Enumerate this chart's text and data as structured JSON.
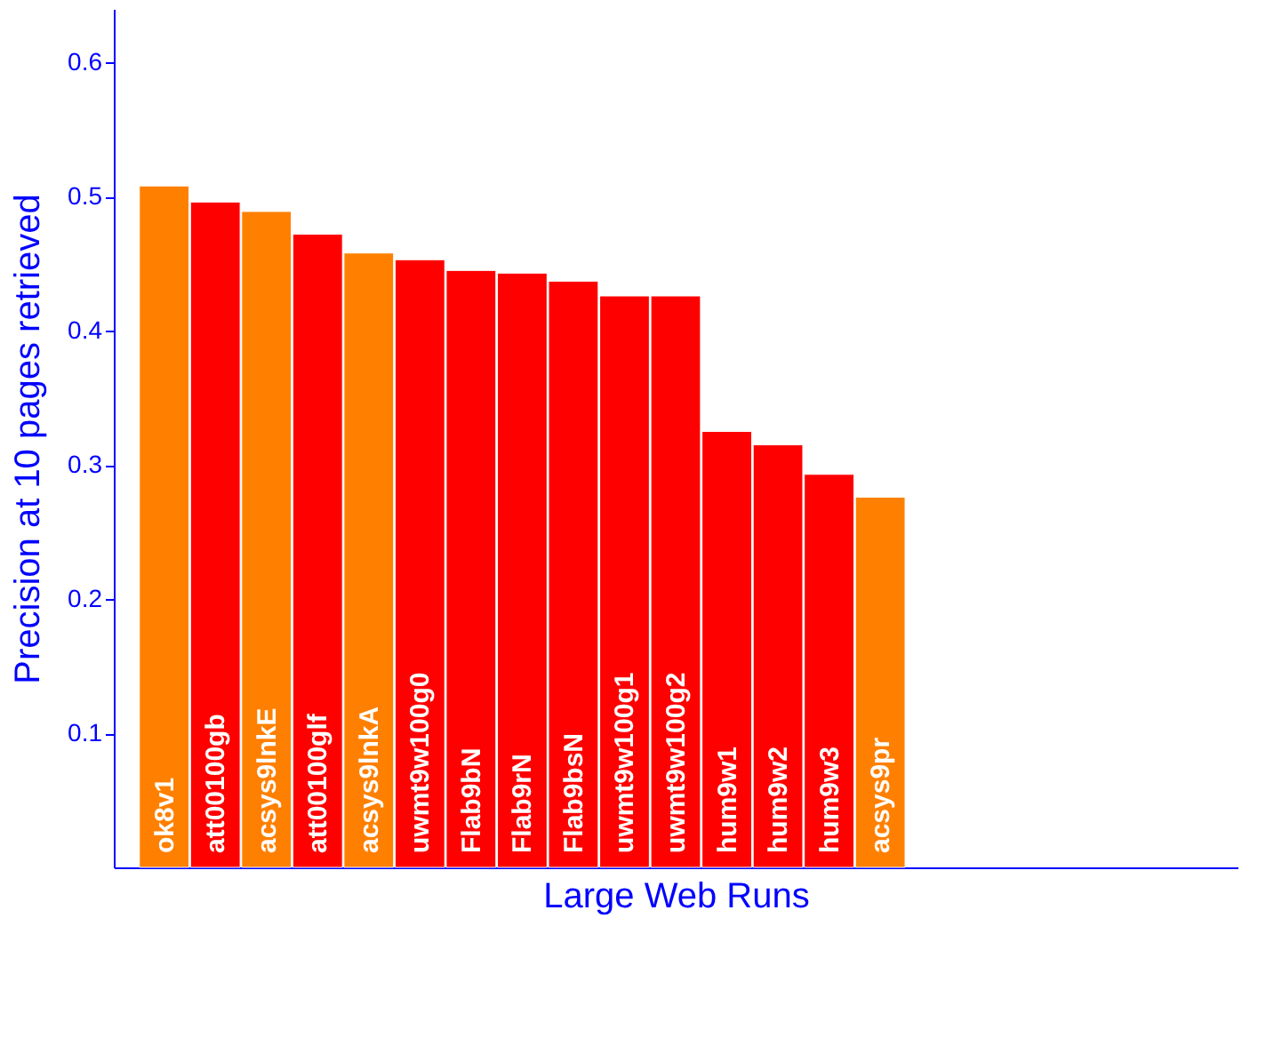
{
  "chart_data": {
    "type": "bar",
    "xlabel": "Large Web Runs",
    "ylabel": "Precision at 10 pages retrieved",
    "categories": [
      "ok8v1",
      "att00100gb",
      "acsys9lnkE",
      "att00100glf",
      "acsys9lnkA",
      "uwmt9w100g0",
      "Flab9bN",
      "Flab9rN",
      "Flab9bsN",
      "uwmt9w100g1",
      "uwmt9w100g2",
      "hum9w1",
      "hum9w2",
      "hum9w3",
      "acsys9pr"
    ],
    "values": [
      0.508,
      0.496,
      0.489,
      0.472,
      0.458,
      0.453,
      0.445,
      0.443,
      0.437,
      0.426,
      0.426,
      0.325,
      0.315,
      0.293,
      0.276
    ],
    "colors": [
      "#ff8000",
      "#ff0000",
      "#ff8000",
      "#ff0000",
      "#ff8000",
      "#ff0000",
      "#ff0000",
      "#ff0000",
      "#ff0000",
      "#ff0000",
      "#ff0000",
      "#ff0000",
      "#ff0000",
      "#ff0000",
      "#ff8000"
    ],
    "ylim": [
      0,
      0.64
    ],
    "yticks": [
      0.1,
      0.2,
      0.3,
      0.4,
      0.5,
      0.6
    ],
    "grid": false,
    "legend": false
  }
}
